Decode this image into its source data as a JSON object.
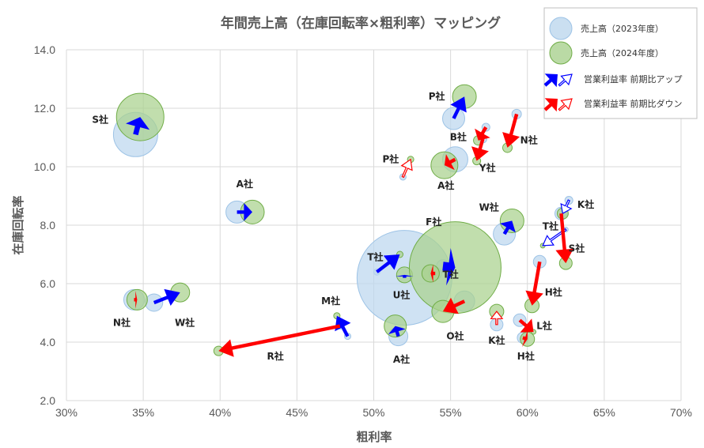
{
  "colors": {
    "bubble_2023_fill": "#bdd7ee",
    "bubble_2023_stroke": "#9dc3e6",
    "bubble_2024_fill": "#a9d18e",
    "bubble_2024_stroke": "#70ad47",
    "arrow_up": "#0000ff",
    "arrow_down": "#ff0000",
    "grid": "#d9d9d9",
    "text": "#595959"
  },
  "chart_data": {
    "type": "bubble",
    "title": "年間売上高（在庫回転率×粗利率）マッピング",
    "xlabel": "粗利率",
    "ylabel": "在庫回転率",
    "xlim": [
      0.3,
      0.7
    ],
    "ylim": [
      2.0,
      14.0
    ],
    "x_ticks": [
      0.3,
      0.35,
      0.4,
      0.45,
      0.5,
      0.55,
      0.6,
      0.65,
      0.7
    ],
    "x_tick_labels": [
      "30%",
      "35%",
      "40%",
      "45%",
      "50%",
      "55%",
      "60%",
      "65%",
      "70%"
    ],
    "y_ticks": [
      2.0,
      4.0,
      6.0,
      8.0,
      10.0,
      12.0,
      14.0
    ],
    "y_tick_labels": [
      "2.0",
      "4.0",
      "6.0",
      "8.0",
      "10.0",
      "12.0",
      "14.0"
    ],
    "grid": true,
    "legend_position": "top-right",
    "legend": {
      "sales_2023": "売上高（2023年度）",
      "sales_2024": "売上高（2024年度）",
      "profit_up": "営業利益率  前期比アップ",
      "profit_down": "営業利益率  前期比ダウン"
    },
    "companies": [
      {
        "label": "S社",
        "x2023": 0.345,
        "y2023": 11.1,
        "s2023": 28,
        "x2024": 0.348,
        "y2024": 11.7,
        "s2024": 30,
        "direction": "up",
        "arrow_weight": 3,
        "label_x": 0.322,
        "label_y": 11.5
      },
      {
        "label": "A社",
        "x2023": 0.411,
        "y2023": 8.45,
        "s2023": 14,
        "x2024": 0.421,
        "y2024": 8.45,
        "s2024": 15,
        "direction": "up",
        "arrow_weight": 2,
        "label_x": 0.416,
        "label_y": 9.3
      },
      {
        "label": "N社",
        "x2023": 0.344,
        "y2023": 5.45,
        "s2023": 13,
        "x2024": 0.346,
        "y2024": 5.45,
        "s2024": 13,
        "direction": "down",
        "arrow_weight": 2,
        "label_x": 0.336,
        "label_y": 4.55
      },
      {
        "label": "W社",
        "x2023": 0.357,
        "y2023": 5.35,
        "s2023": 11,
        "x2024": 0.374,
        "y2024": 5.7,
        "s2024": 12,
        "direction": "up",
        "arrow_weight": 2,
        "label_x": 0.377,
        "label_y": 4.55
      },
      {
        "label": "M社",
        "x2023": 0.483,
        "y2023": 4.2,
        "s2023": 4,
        "x2024": 0.476,
        "y2024": 4.9,
        "s2024": 4,
        "direction": "up",
        "arrow_weight": 2,
        "label_x": 0.472,
        "label_y": 5.3
      },
      {
        "label": "R社",
        "x2023": 0.478,
        "y2023": 4.55,
        "s2023": 4,
        "x2024": 0.399,
        "y2024": 3.7,
        "s2024": 6,
        "direction": "down",
        "arrow_weight": 2,
        "label_x": 0.436,
        "label_y": 3.4
      },
      {
        "label": "A社",
        "x2023": 0.516,
        "y2023": 4.2,
        "s2023": 12,
        "x2024": 0.514,
        "y2024": 4.55,
        "s2024": 14,
        "direction": "up",
        "arrow_weight": 2,
        "label_x": 0.518,
        "label_y": 3.3
      },
      {
        "label": "T社",
        "x2023": 0.502,
        "y2023": 6.4,
        "s2023": 4,
        "x2024": 0.517,
        "y2024": 7.0,
        "s2024": 4,
        "direction": "up",
        "arrow_weight": 2,
        "label_x": 0.501,
        "label_y": 6.8
      },
      {
        "label": "U社",
        "x2023": 0.52,
        "y2023": 6.2,
        "s2023": 60,
        "x2024": 0.52,
        "y2024": 6.3,
        "s2024": 10,
        "direction": "up",
        "arrow_weight": 2,
        "label_x": 0.518,
        "label_y": 5.5
      },
      {
        "label": "F社",
        "x2023": 0.545,
        "y2023": 6.6,
        "s2023": 8,
        "x2024": 0.553,
        "y2024": 6.55,
        "s2024": 58,
        "direction": "up",
        "arrow_weight": 5,
        "label_x": 0.539,
        "label_y": 8.0
      },
      {
        "label": "T社",
        "x2023": 0.54,
        "y2023": 6.35,
        "s2023": 8,
        "x2024": 0.537,
        "y2024": 6.35,
        "s2024": 11,
        "direction": "down",
        "arrow_weight": 2,
        "label_x": 0.55,
        "label_y": 6.2
      },
      {
        "label": "O社",
        "x2023": 0.559,
        "y2023": 5.4,
        "s2023": 13,
        "x2024": 0.545,
        "y2024": 5.05,
        "s2024": 14,
        "direction": "down",
        "arrow_weight": 2,
        "label_x": 0.553,
        "label_y": 4.1
      },
      {
        "label": "P社",
        "x2023": 0.552,
        "y2023": 11.65,
        "s2023": 14,
        "x2024": 0.559,
        "y2024": 12.4,
        "s2024": 15,
        "direction": "up",
        "arrow_weight": 2,
        "label_x": 0.541,
        "label_y": 12.3
      },
      {
        "label": "B社",
        "x2023": 0.573,
        "y2023": 11.35,
        "s2023": 5,
        "x2024": 0.568,
        "y2024": 10.9,
        "s2024": 6,
        "direction": "down",
        "arrow_weight": 2,
        "label_x": 0.555,
        "label_y": 10.9
      },
      {
        "label": "A社",
        "x2023": 0.553,
        "y2023": 10.25,
        "s2023": 16,
        "x2024": 0.546,
        "y2024": 10.05,
        "s2024": 17,
        "direction": "down",
        "arrow_weight": 2,
        "label_x": 0.547,
        "label_y": 9.25
      },
      {
        "label": "P社",
        "x2023": 0.519,
        "y2023": 9.65,
        "s2023": 4,
        "x2024": 0.524,
        "y2024": 10.25,
        "s2024": 4,
        "direction": "down",
        "arrow_weight": 1,
        "label_x": 0.511,
        "label_y": 10.15
      },
      {
        "label": "Y社",
        "x2023": 0.571,
        "y2023": 10.95,
        "s2023": 5,
        "x2024": 0.567,
        "y2024": 10.2,
        "s2024": 5,
        "direction": "down",
        "arrow_weight": 2,
        "label_x": 0.574,
        "label_y": 9.85
      },
      {
        "label": "N社",
        "x2023": 0.593,
        "y2023": 11.8,
        "s2023": 6,
        "x2024": 0.587,
        "y2024": 10.65,
        "s2024": 6,
        "direction": "down",
        "arrow_weight": 2,
        "label_x": 0.601,
        "label_y": 10.8
      },
      {
        "label": "W社",
        "x2023": 0.585,
        "y2023": 7.7,
        "s2023": 14,
        "x2024": 0.59,
        "y2024": 8.15,
        "s2024": 15,
        "direction": "up",
        "arrow_weight": 2,
        "label_x": 0.575,
        "label_y": 8.5
      },
      {
        "label": "K社",
        "x2023": 0.627,
        "y2023": 8.85,
        "s2023": 5,
        "x2024": 0.623,
        "y2024": 8.4,
        "s2024": 7,
        "direction": "up",
        "arrow_weight": 1,
        "label_x": 0.638,
        "label_y": 8.6
      },
      {
        "label": "T社",
        "x2023": 0.625,
        "y2023": 7.85,
        "s2023": 3,
        "x2024": 0.61,
        "y2024": 7.3,
        "s2024": 3,
        "direction": "up",
        "arrow_weight": 1,
        "label_x": 0.615,
        "label_y": 7.85
      },
      {
        "label": "S社",
        "x2023": 0.622,
        "y2023": 8.4,
        "s2023": 8,
        "x2024": 0.625,
        "y2024": 6.7,
        "s2024": 8,
        "direction": "down",
        "arrow_weight": 2,
        "label_x": 0.632,
        "label_y": 7.1
      },
      {
        "label": "H社",
        "x2023": 0.608,
        "y2023": 6.75,
        "s2023": 8,
        "x2024": 0.603,
        "y2024": 5.25,
        "s2024": 9,
        "direction": "down",
        "arrow_weight": 2,
        "label_x": 0.617,
        "label_y": 5.6
      },
      {
        "label": "K社",
        "x2023": 0.58,
        "y2023": 4.6,
        "s2023": 8,
        "x2024": 0.58,
        "y2024": 5.05,
        "s2024": 9,
        "direction": "down",
        "arrow_weight": 1,
        "label_x": 0.58,
        "label_y": 3.95
      },
      {
        "label": "L社",
        "x2023": 0.595,
        "y2023": 4.75,
        "s2023": 8,
        "x2024": 0.604,
        "y2024": 4.35,
        "s2024": 3,
        "direction": "down",
        "arrow_weight": 2,
        "label_x": 0.611,
        "label_y": 4.45
      },
      {
        "label": "H社",
        "x2023": 0.597,
        "y2023": 4.15,
        "s2023": 7,
        "x2024": 0.6,
        "y2024": 4.1,
        "s2024": 9,
        "direction": "down",
        "arrow_weight": 2,
        "label_x": 0.599,
        "label_y": 3.4
      }
    ]
  }
}
